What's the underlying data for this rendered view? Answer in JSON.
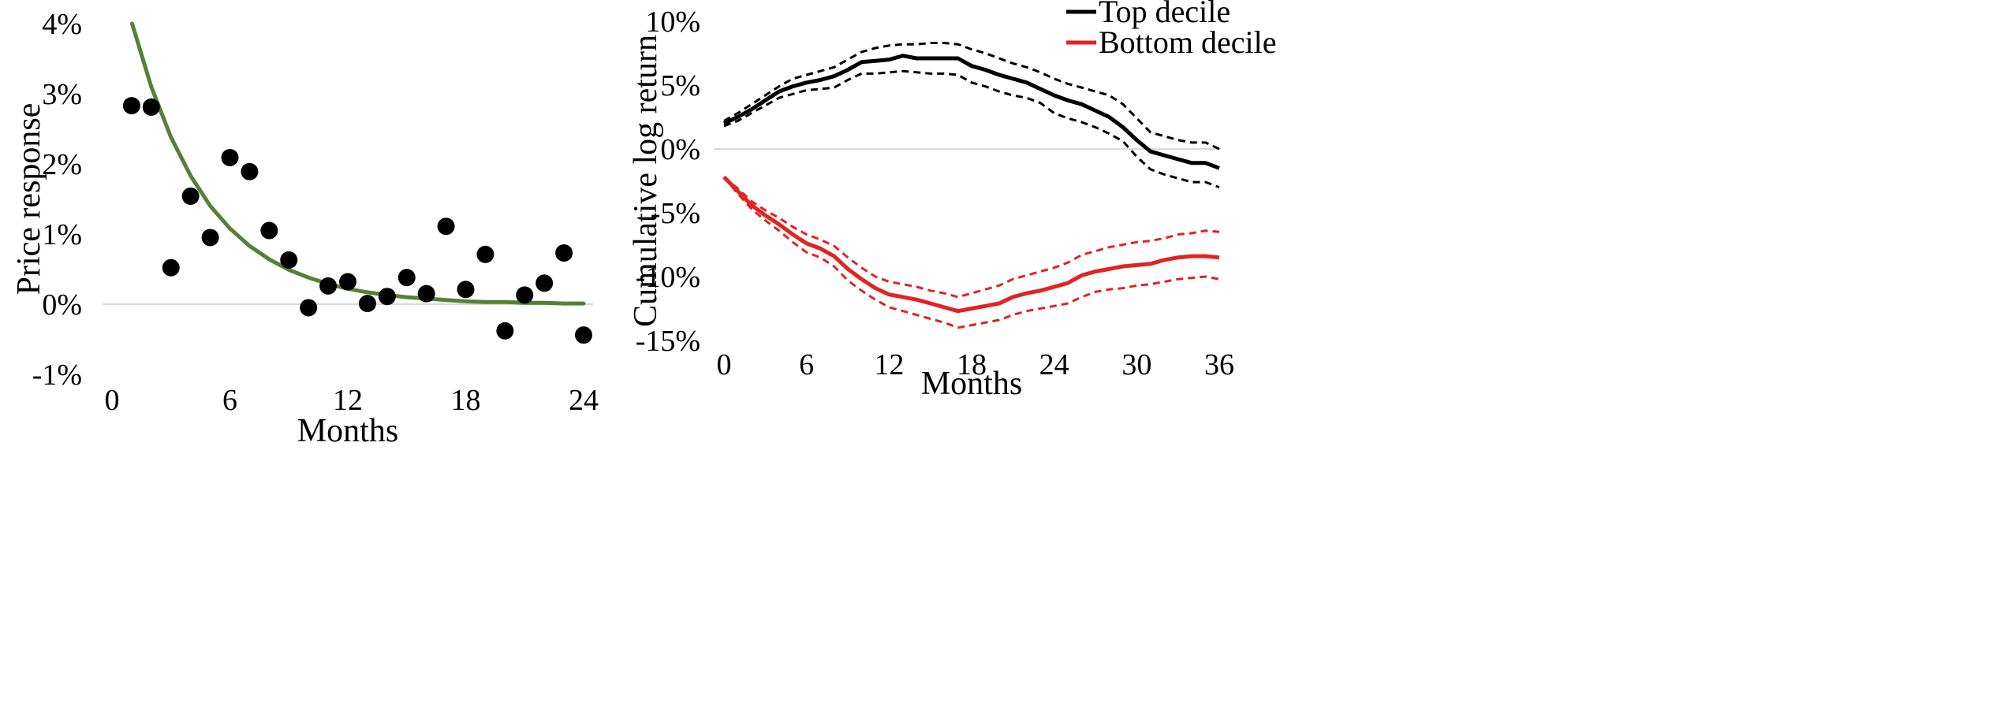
{
  "chart_data": [
    {
      "type": "scatter",
      "title": "",
      "xlabel": "Months",
      "ylabel": "Price response",
      "xlim": [
        0,
        24
      ],
      "ylim": [
        -0.01,
        0.04
      ],
      "x_ticks": [
        0,
        6,
        12,
        18,
        24
      ],
      "x_tick_labels": [
        "0",
        "6",
        "12",
        "18",
        "24"
      ],
      "y_ticks": [
        0.04,
        0.03,
        0.02,
        0.01,
        0.0,
        -0.01
      ],
      "y_tick_labels": [
        "4%",
        "3%",
        "2%",
        "1%",
        "0%",
        "-1%"
      ],
      "zero_line": true,
      "colors": {
        "points": "#000000",
        "fit": "#548235",
        "zero": "#d9d9d9"
      },
      "series": [
        {
          "kind": "points",
          "x": [
            1,
            2,
            3,
            4,
            5,
            6,
            7,
            8,
            9,
            10,
            11,
            12,
            13,
            14,
            15,
            16,
            17,
            18,
            19,
            20,
            21,
            22,
            23,
            24
          ],
          "y": [
            0.0283,
            0.0281,
            0.0052,
            0.0154,
            0.0095,
            0.0209,
            0.0189,
            0.0105,
            0.0063,
            -0.0005,
            0.0026,
            0.0032,
            0.0001,
            0.0011,
            0.0038,
            0.0015,
            0.0111,
            0.0021,
            0.0071,
            -0.0038,
            0.0013,
            0.003,
            0.0073,
            -0.0044
          ]
        },
        {
          "kind": "line",
          "x": [
            1,
            2,
            3,
            4,
            5,
            6,
            7,
            8,
            9,
            10,
            11,
            12,
            13,
            14,
            15,
            16,
            17,
            18,
            19,
            20,
            21,
            22,
            23,
            24
          ],
          "y": [
            0.0402,
            0.031,
            0.0238,
            0.0183,
            0.014,
            0.0108,
            0.0083,
            0.0064,
            0.0049,
            0.0038,
            0.0029,
            0.0022,
            0.0017,
            0.0013,
            0.001,
            0.0008,
            0.0006,
            0.0004,
            0.0003,
            0.0003,
            0.0002,
            0.0002,
            0.0001,
            0.0001
          ]
        }
      ]
    },
    {
      "type": "line",
      "title": "",
      "xlabel": "Months",
      "ylabel": "Cumulative log return",
      "xlim": [
        0,
        36
      ],
      "ylim": [
        -0.15,
        0.1
      ],
      "x_ticks": [
        0,
        6,
        12,
        18,
        24,
        30,
        36
      ],
      "x_tick_labels": [
        "0",
        "6",
        "12",
        "18",
        "24",
        "30",
        "36"
      ],
      "y_ticks": [
        0.1,
        0.05,
        0.0,
        -0.05,
        -0.1,
        -0.15
      ],
      "y_tick_labels": [
        "10%",
        "5%",
        "0%",
        "-5%",
        "-10%",
        "-15%"
      ],
      "zero_line": true,
      "legend_position": "top-right",
      "legend": [
        {
          "name": "Top decile",
          "color": "#000000"
        },
        {
          "name": "Bottom decile",
          "color": "#e32222"
        }
      ],
      "series": [
        {
          "name": "Top decile",
          "color": "#000000",
          "x": [
            0,
            1,
            2,
            3,
            4,
            5,
            6,
            7,
            8,
            9,
            10,
            11,
            12,
            13,
            14,
            15,
            16,
            17,
            18,
            19,
            20,
            21,
            22,
            23,
            24,
            25,
            26,
            27,
            28,
            29,
            30,
            31,
            32,
            33,
            34,
            35,
            36
          ],
          "estimate": [
            0.02,
            0.025,
            0.031,
            0.038,
            0.045,
            0.049,
            0.052,
            0.054,
            0.057,
            0.062,
            0.068,
            0.069,
            0.07,
            0.073,
            0.071,
            0.071,
            0.071,
            0.071,
            0.065,
            0.062,
            0.058,
            0.055,
            0.052,
            0.047,
            0.042,
            0.038,
            0.035,
            0.03,
            0.025,
            0.017,
            0.007,
            -0.002,
            -0.005,
            -0.008,
            -0.011,
            -0.011,
            -0.015
          ],
          "upper": [
            0.022,
            0.028,
            0.035,
            0.042,
            0.049,
            0.055,
            0.058,
            0.061,
            0.064,
            0.07,
            0.076,
            0.079,
            0.081,
            0.082,
            0.082,
            0.083,
            0.083,
            0.082,
            0.078,
            0.075,
            0.071,
            0.067,
            0.064,
            0.06,
            0.055,
            0.051,
            0.048,
            0.045,
            0.042,
            0.035,
            0.024,
            0.013,
            0.01,
            0.007,
            0.005,
            0.005,
            0.0
          ],
          "lower": [
            0.018,
            0.022,
            0.028,
            0.034,
            0.04,
            0.043,
            0.046,
            0.047,
            0.048,
            0.054,
            0.059,
            0.059,
            0.06,
            0.061,
            0.06,
            0.059,
            0.059,
            0.058,
            0.052,
            0.049,
            0.045,
            0.042,
            0.04,
            0.036,
            0.028,
            0.024,
            0.021,
            0.017,
            0.012,
            0.006,
            -0.006,
            -0.016,
            -0.02,
            -0.023,
            -0.026,
            -0.026,
            -0.03
          ]
        },
        {
          "name": "Bottom decile",
          "color": "#e32222",
          "x": [
            0,
            1,
            2,
            3,
            4,
            5,
            6,
            7,
            8,
            9,
            10,
            11,
            12,
            13,
            14,
            15,
            16,
            17,
            18,
            19,
            20,
            21,
            22,
            23,
            24,
            25,
            26,
            27,
            28,
            29,
            30,
            31,
            32,
            33,
            34,
            35,
            36
          ],
          "estimate": [
            -0.022,
            -0.033,
            -0.044,
            -0.052,
            -0.059,
            -0.067,
            -0.074,
            -0.078,
            -0.084,
            -0.094,
            -0.102,
            -0.109,
            -0.114,
            -0.116,
            -0.118,
            -0.121,
            -0.124,
            -0.127,
            -0.125,
            -0.123,
            -0.121,
            -0.116,
            -0.113,
            -0.111,
            -0.108,
            -0.105,
            -0.099,
            -0.096,
            -0.094,
            -0.092,
            -0.091,
            -0.09,
            -0.087,
            -0.085,
            -0.084,
            -0.084,
            -0.085
          ]
        },
        {
          "name": "Bottom decile upper",
          "color": "#e32222",
          "dashed": true,
          "x": [
            0,
            1,
            2,
            3,
            4,
            5,
            6,
            7,
            8,
            9,
            10,
            11,
            12,
            13,
            14,
            15,
            16,
            17,
            18,
            19,
            20,
            21,
            22,
            23,
            24,
            25,
            26,
            27,
            28,
            29,
            30,
            31,
            32,
            33,
            34,
            35,
            36
          ],
          "y": [
            -0.022,
            -0.031,
            -0.041,
            -0.048,
            -0.054,
            -0.061,
            -0.067,
            -0.071,
            -0.076,
            -0.085,
            -0.093,
            -0.1,
            -0.104,
            -0.106,
            -0.108,
            -0.111,
            -0.113,
            -0.116,
            -0.113,
            -0.11,
            -0.107,
            -0.102,
            -0.099,
            -0.096,
            -0.093,
            -0.089,
            -0.083,
            -0.08,
            -0.077,
            -0.075,
            -0.073,
            -0.072,
            -0.07,
            -0.067,
            -0.066,
            -0.064,
            -0.065
          ]
        },
        {
          "name": "Bottom decile lower",
          "color": "#e32222",
          "dashed": true,
          "x": [
            0,
            1,
            2,
            3,
            4,
            5,
            6,
            7,
            8,
            9,
            10,
            11,
            12,
            13,
            14,
            15,
            16,
            17,
            18,
            19,
            20,
            21,
            22,
            23,
            24,
            25,
            26,
            27,
            28,
            29,
            30,
            31,
            32,
            33,
            34,
            35,
            36
          ],
          "y": [
            -0.022,
            -0.035,
            -0.047,
            -0.056,
            -0.064,
            -0.073,
            -0.081,
            -0.085,
            -0.092,
            -0.103,
            -0.111,
            -0.118,
            -0.124,
            -0.127,
            -0.13,
            -0.133,
            -0.136,
            -0.14,
            -0.138,
            -0.136,
            -0.134,
            -0.13,
            -0.127,
            -0.125,
            -0.123,
            -0.121,
            -0.116,
            -0.112,
            -0.11,
            -0.109,
            -0.107,
            -0.106,
            -0.104,
            -0.102,
            -0.101,
            -0.1,
            -0.102
          ]
        }
      ]
    }
  ]
}
